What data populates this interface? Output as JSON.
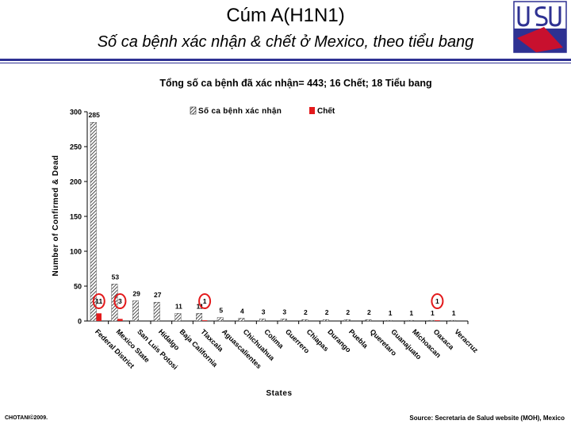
{
  "header": {
    "title": "Cúm A(H1N1)",
    "subtitle": "Số ca bệnh xác nhận & chết ở Mexico, theo tiểu bang"
  },
  "footer": {
    "left": "CHOTANI©2009.",
    "right": "Source: Secretaria de Salud website (MOH), Mexico"
  },
  "colors": {
    "accent": "#2e3192",
    "dead": "#e31a1c",
    "highlight": "#e31a1c"
  },
  "chart_data": {
    "type": "bar",
    "title": "Tổng số ca bệnh đã xác nhận= 443; 16 Chết; 18 Tiểu bang",
    "xlabel": "States",
    "ylabel": "Number of Confirmed & Dead",
    "ylim": [
      0,
      300
    ],
    "yticks": [
      "0",
      "50",
      "100",
      "150",
      "200",
      "250",
      "300"
    ],
    "legend_position": "top-center",
    "categories": [
      "Federal District",
      "Mexico State",
      "San Luis Potosi",
      "Hidalgo",
      "Baja California",
      "Tlaxcala",
      "Aguascalientes",
      "Chichuahua",
      "Colima",
      "Guerrero",
      "Chiapas",
      "Durango",
      "Puebla",
      "Queretaro",
      "Guanajuato",
      "Michoacan",
      "Oaxaca",
      "Veracruz"
    ],
    "series": [
      {
        "name": "Số ca bệnh xác nhận",
        "pattern": "hatched",
        "values": [
          285,
          53,
          29,
          27,
          11,
          11,
          5,
          4,
          3,
          3,
          2,
          2,
          2,
          2,
          1,
          1,
          1,
          1
        ]
      },
      {
        "name": "Chết",
        "color": "#e31a1c",
        "values": [
          11,
          3,
          0,
          0,
          0,
          1,
          0,
          0,
          0,
          0,
          0,
          0,
          0,
          0,
          0,
          0,
          1,
          0
        ]
      }
    ],
    "dead_labels": [
      "11",
      "3",
      "1",
      "1"
    ],
    "dead_label_categories": [
      0,
      1,
      5,
      16
    ]
  }
}
